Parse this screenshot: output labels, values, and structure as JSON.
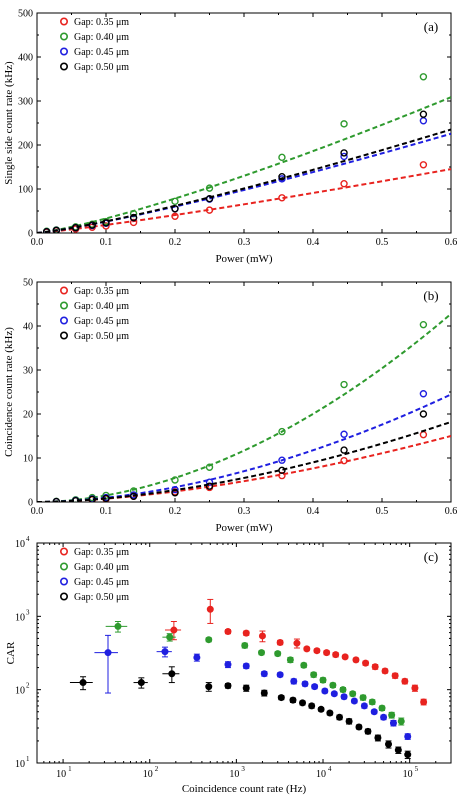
{
  "chart_data": [
    {
      "type": "scatter",
      "panel_label": "(a)",
      "xlabel": "Power (mW)",
      "ylabel": "Single side count rate (kHz)",
      "xlim": [
        0,
        0.6
      ],
      "ylim": [
        0,
        500
      ],
      "x_scale": "linear",
      "y_scale": "linear",
      "x_ticks": [
        "0.0",
        "0.1",
        "0.2",
        "0.3",
        "0.4",
        "0.5",
        "0.6"
      ],
      "y_ticks": [
        "0",
        "100",
        "200",
        "300",
        "400",
        "500"
      ],
      "legend_position": "top-left",
      "fit_lines": "dashed",
      "series": [
        {
          "name": "Gap: 0.35 μm",
          "color": "#e8231f",
          "x": [
            0.014,
            0.028,
            0.056,
            0.08,
            0.1,
            0.14,
            0.2,
            0.25,
            0.355,
            0.445,
            0.56
          ],
          "y": [
            2,
            5,
            9,
            13,
            16,
            24,
            38,
            52,
            80,
            112,
            155
          ]
        },
        {
          "name": "Gap: 0.40 μm",
          "color": "#2e9a2e",
          "x": [
            0.014,
            0.028,
            0.056,
            0.08,
            0.1,
            0.14,
            0.2,
            0.25,
            0.355,
            0.445,
            0.56
          ],
          "y": [
            4,
            7,
            14,
            20,
            26,
            44,
            72,
            102,
            172,
            248,
            355
          ]
        },
        {
          "name": "Gap: 0.45 μm",
          "color": "#1f1fe0",
          "x": [
            0.014,
            0.028,
            0.056,
            0.08,
            0.1,
            0.14,
            0.2,
            0.25,
            0.355,
            0.445,
            0.56
          ],
          "y": [
            3,
            6,
            12,
            17,
            22,
            35,
            55,
            77,
            123,
            174,
            255
          ]
        },
        {
          "name": "Gap: 0.50 μm",
          "color": "#000000",
          "x": [
            0.014,
            0.028,
            0.056,
            0.08,
            0.1,
            0.14,
            0.2,
            0.25,
            0.355,
            0.445,
            0.56
          ],
          "y": [
            3,
            6,
            12,
            18,
            23,
            35,
            55,
            78,
            128,
            182,
            270
          ]
        }
      ]
    },
    {
      "type": "scatter",
      "panel_label": "(b)",
      "xlabel": "Power (mW)",
      "ylabel": "Coincidence count rate (kHz)",
      "xlim": [
        0,
        0.6
      ],
      "ylim": [
        0,
        50
      ],
      "x_scale": "linear",
      "y_scale": "linear",
      "x_ticks": [
        "0.0",
        "0.1",
        "0.2",
        "0.3",
        "0.4",
        "0.5",
        "0.6"
      ],
      "y_ticks": [
        "0",
        "10",
        "20",
        "30",
        "40",
        "50"
      ],
      "legend_position": "top-left",
      "fit_lines": "dashed",
      "series": [
        {
          "name": "Gap: 0.35 μm",
          "color": "#e8231f",
          "x": [
            0.028,
            0.056,
            0.08,
            0.1,
            0.14,
            0.2,
            0.25,
            0.355,
            0.445,
            0.56
          ],
          "y": [
            0.1,
            0.3,
            0.5,
            0.7,
            1.3,
            2.3,
            3.3,
            6.0,
            9.4,
            15.3
          ]
        },
        {
          "name": "Gap: 0.40 μm",
          "color": "#2e9a2e",
          "x": [
            0.028,
            0.056,
            0.08,
            0.1,
            0.14,
            0.2,
            0.25,
            0.355,
            0.445,
            0.56
          ],
          "y": [
            0.15,
            0.5,
            1.0,
            1.5,
            2.5,
            5.0,
            7.9,
            16.0,
            26.7,
            40.3
          ]
        },
        {
          "name": "Gap: 0.45 μm",
          "color": "#1f1fe0",
          "x": [
            0.028,
            0.056,
            0.08,
            0.1,
            0.14,
            0.2,
            0.25,
            0.355,
            0.445,
            0.56
          ],
          "y": [
            0.1,
            0.35,
            0.7,
            1.0,
            1.6,
            2.8,
            4.5,
            9.5,
            15.4,
            24.6
          ]
        },
        {
          "name": "Gap: 0.50 μm",
          "color": "#000000",
          "x": [
            0.028,
            0.056,
            0.08,
            0.1,
            0.14,
            0.2,
            0.25,
            0.355,
            0.445,
            0.56
          ],
          "y": [
            0.1,
            0.3,
            0.6,
            0.8,
            1.3,
            2.1,
            3.6,
            7.2,
            11.8,
            20.0
          ]
        }
      ]
    },
    {
      "type": "scatter",
      "panel_label": "(c)",
      "xlabel": "Coincidence count rate (Hz)",
      "ylabel": "CAR",
      "xlim": [
        5,
        300000
      ],
      "ylim": [
        10,
        10000
      ],
      "x_scale": "log",
      "y_scale": "log",
      "x_ticks": [
        {
          "value": 10,
          "base": "10",
          "exp": "1"
        },
        {
          "value": 100,
          "base": "10",
          "exp": "2"
        },
        {
          "value": 1000,
          "base": "10",
          "exp": "3"
        },
        {
          "value": 10000,
          "base": "10",
          "exp": "4"
        },
        {
          "value": 100000,
          "base": "10",
          "exp": "5"
        }
      ],
      "y_ticks": [
        {
          "value": 10,
          "base": "10",
          "exp": "1"
        },
        {
          "value": 100,
          "base": "10",
          "exp": "2"
        },
        {
          "value": 1000,
          "base": "10",
          "exp": "3"
        },
        {
          "value": 10000,
          "base": "10",
          "exp": "4"
        }
      ],
      "legend_position": "top-left",
      "error_bars": true,
      "series": [
        {
          "name": "Gap: 0.35 μm",
          "color": "#e8231f",
          "x": [
            190,
            500,
            800,
            1300,
            2000,
            3200,
            5000,
            6500,
            8500,
            11000,
            14000,
            18000,
            24000,
            31000,
            40000,
            52000,
            68000,
            88000,
            115000,
            145000
          ],
          "y": [
            650,
            1250,
            620,
            590,
            540,
            440,
            430,
            360,
            340,
            320,
            300,
            280,
            255,
            230,
            205,
            180,
            155,
            130,
            105,
            68
          ],
          "yerr_lo": [
            170,
            450,
            40,
            40,
            90,
            30,
            60,
            20,
            20,
            20,
            20,
            15,
            15,
            15,
            15,
            12,
            12,
            10,
            10,
            6
          ],
          "yerr_hi": [
            200,
            450,
            40,
            40,
            90,
            30,
            60,
            20,
            20,
            20,
            20,
            15,
            15,
            15,
            15,
            12,
            12,
            10,
            10,
            6
          ],
          "xerr": [
            40,
            20,
            30,
            40,
            60,
            80,
            120,
            150,
            200,
            250,
            300,
            400,
            500,
            700,
            900,
            1200,
            1500,
            2000,
            2500,
            3000
          ]
        },
        {
          "name": "Gap: 0.40 μm",
          "color": "#2e9a2e",
          "x": [
            43,
            170,
            480,
            1250,
            1950,
            3000,
            4200,
            6000,
            7800,
            10000,
            13000,
            17000,
            22000,
            29000,
            37000,
            48000,
            62000,
            80000
          ],
          "y": [
            730,
            520,
            480,
            400,
            320,
            310,
            255,
            215,
            160,
            135,
            115,
            100,
            88,
            78,
            68,
            56,
            45,
            37
          ],
          "yerr_lo": [
            120,
            60,
            30,
            30,
            20,
            20,
            20,
            15,
            12,
            10,
            8,
            7,
            6,
            6,
            5,
            4,
            4,
            4
          ],
          "yerr_hi": [
            120,
            60,
            30,
            30,
            20,
            20,
            20,
            15,
            12,
            10,
            8,
            7,
            6,
            6,
            5,
            4,
            4,
            4
          ],
          "xerr": [
            12,
            30,
            15,
            30,
            40,
            60,
            80,
            120,
            150,
            200,
            250,
            300,
            400,
            500,
            700,
            900,
            1200,
            1500
          ]
        },
        {
          "name": "Gap: 0.45 μm",
          "color": "#1f1fe0",
          "x": [
            33,
            150,
            350,
            800,
            1300,
            2100,
            3200,
            4600,
            6200,
            8000,
            10500,
            13500,
            17500,
            23000,
            30000,
            39000,
            50000,
            65000,
            95000
          ],
          "y": [
            320,
            330,
            275,
            220,
            210,
            165,
            160,
            130,
            120,
            110,
            96,
            88,
            80,
            70,
            60,
            50,
            42,
            35,
            23
          ],
          "yerr_lo": [
            230,
            50,
            30,
            20,
            15,
            12,
            10,
            10,
            8,
            7,
            6,
            5,
            5,
            4,
            4,
            3,
            3,
            3,
            2
          ],
          "yerr_hi": [
            230,
            50,
            30,
            20,
            15,
            12,
            10,
            10,
            8,
            7,
            6,
            5,
            5,
            4,
            4,
            3,
            3,
            3,
            2
          ],
          "xerr": [
            10,
            30,
            30,
            30,
            40,
            60,
            80,
            100,
            150,
            200,
            250,
            300,
            400,
            500,
            700,
            900,
            1200,
            1500,
            2000
          ]
        },
        {
          "name": "Gap: 0.50 μm",
          "color": "#000000",
          "x": [
            17,
            80,
            180,
            480,
            800,
            1300,
            2100,
            3300,
            4500,
            5800,
            7400,
            9500,
            12000,
            15500,
            20000,
            26000,
            33000,
            43000,
            57000,
            74000,
            95000
          ],
          "y": [
            125,
            125,
            165,
            110,
            113,
            105,
            90,
            78,
            72,
            66,
            60,
            54,
            48,
            42,
            37,
            31,
            27,
            22,
            18,
            15,
            13
          ],
          "yerr_lo": [
            25,
            20,
            40,
            15,
            8,
            10,
            8,
            5,
            5,
            4,
            4,
            3,
            3,
            3,
            3,
            2,
            2,
            2,
            2,
            1.5,
            1.5
          ],
          "yerr_hi": [
            25,
            20,
            40,
            15,
            8,
            10,
            8,
            5,
            5,
            4,
            4,
            3,
            3,
            3,
            3,
            2,
            2,
            2,
            2,
            1.5,
            1.5
          ],
          "xerr": [
            5,
            15,
            40,
            30,
            30,
            40,
            60,
            80,
            100,
            150,
            200,
            250,
            300,
            400,
            500,
            700,
            900,
            1200,
            1500,
            2000,
            2500
          ]
        }
      ]
    }
  ]
}
